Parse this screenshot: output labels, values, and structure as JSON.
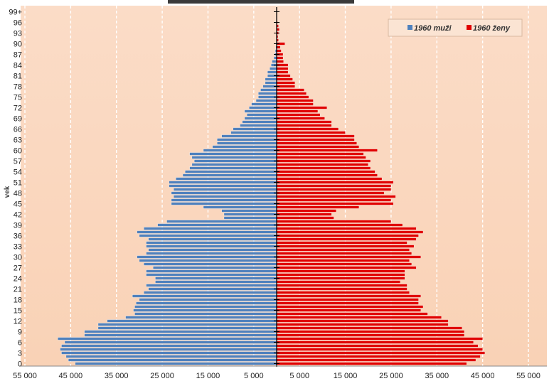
{
  "chart_data": {
    "type": "bar",
    "orientation": "horizontal",
    "title": "",
    "xlabel": "",
    "ylabel": "vek",
    "x_ticks": [
      "55 000",
      "45 000",
      "35 000",
      "25 000",
      "15 000",
      "5 000",
      "5 000",
      "15 000",
      "25 000",
      "35 000",
      "45 000",
      "55 000"
    ],
    "y_tick_labels": [
      "0",
      "3",
      "6",
      "9",
      "12",
      "15",
      "18",
      "21",
      "24",
      "27",
      "30",
      "33",
      "36",
      "39",
      "42",
      "45",
      "48",
      "51",
      "54",
      "57",
      "60",
      "63",
      "66",
      "69",
      "72",
      "75",
      "78",
      "81",
      "84",
      "87",
      "90",
      "93",
      "96",
      "99+"
    ],
    "xlim": [
      -55000,
      55000
    ],
    "legend_position": "top-right",
    "categories": [
      "0",
      "1",
      "2",
      "3",
      "4",
      "5",
      "6",
      "7",
      "8",
      "9",
      "10",
      "11",
      "12",
      "13",
      "14",
      "15",
      "16",
      "17",
      "18",
      "19",
      "20",
      "21",
      "22",
      "23",
      "24",
      "25",
      "26",
      "27",
      "28",
      "29",
      "30",
      "31",
      "32",
      "33",
      "34",
      "35",
      "36",
      "37",
      "38",
      "39",
      "40",
      "41",
      "42",
      "43",
      "44",
      "45",
      "46",
      "47",
      "48",
      "49",
      "50",
      "51",
      "52",
      "53",
      "54",
      "55",
      "56",
      "57",
      "58",
      "59",
      "60",
      "61",
      "62",
      "63",
      "64",
      "65",
      "66",
      "67",
      "68",
      "69",
      "70",
      "71",
      "72",
      "73",
      "74",
      "75",
      "76",
      "77",
      "78",
      "79",
      "80",
      "81",
      "82",
      "83",
      "84",
      "85",
      "86",
      "87",
      "88",
      "89",
      "90",
      "91",
      "92",
      "93",
      "94",
      "95",
      "96",
      "97",
      "98",
      "99+"
    ],
    "series": [
      {
        "name": "1960 muži",
        "color": "#4f81bd",
        "values": [
          44000,
          45500,
          46000,
          47000,
          47300,
          47000,
          46300,
          47800,
          42000,
          42000,
          39000,
          39000,
          37000,
          33000,
          31000,
          31300,
          31000,
          30700,
          30000,
          31500,
          29000,
          28000,
          28500,
          26500,
          26500,
          28500,
          28500,
          27000,
          29000,
          30000,
          30500,
          28500,
          28000,
          28500,
          28500,
          28000,
          30000,
          30500,
          29000,
          26000,
          24000,
          11500,
          11500,
          12000,
          16000,
          23000,
          23000,
          22500,
          23000,
          22500,
          23500,
          23500,
          22000,
          20500,
          20000,
          19000,
          18500,
          18000,
          18500,
          19000,
          16000,
          14000,
          13000,
          13000,
          12000,
          10000,
          9500,
          8000,
          7500,
          7000,
          6500,
          7000,
          6000,
          5500,
          4500,
          4000,
          4000,
          3500,
          3000,
          2500,
          2500,
          2000,
          2000,
          1500,
          1200,
          1000,
          600,
          400,
          300,
          200,
          150,
          100,
          80,
          60,
          40,
          30,
          20,
          10,
          5,
          5
        ]
      },
      {
        "name": "1960 ženy",
        "color": "#e00000",
        "values": [
          41500,
          43500,
          44500,
          45500,
          45000,
          44000,
          43000,
          45000,
          41000,
          41000,
          40500,
          37500,
          37500,
          36000,
          33000,
          31500,
          32000,
          31000,
          31000,
          31500,
          29000,
          28500,
          28500,
          27000,
          28000,
          28000,
          28000,
          30500,
          29500,
          29000,
          31500,
          29500,
          29000,
          30000,
          28500,
          30500,
          31000,
          32000,
          30500,
          27500,
          25000,
          12500,
          12000,
          13000,
          18000,
          25500,
          25000,
          26000,
          23500,
          25000,
          25000,
          25500,
          23000,
          22000,
          21500,
          20500,
          20000,
          20500,
          19500,
          19000,
          22000,
          18000,
          17500,
          17000,
          17000,
          15000,
          13500,
          12000,
          12000,
          10500,
          9500,
          9000,
          11000,
          8000,
          8000,
          7000,
          6500,
          6000,
          4000,
          4000,
          3500,
          3000,
          2500,
          2500,
          2500,
          1500,
          1400,
          1400,
          1000,
          800,
          1800,
          400,
          300,
          400,
          600,
          400,
          200,
          100,
          80,
          50
        ]
      }
    ]
  }
}
